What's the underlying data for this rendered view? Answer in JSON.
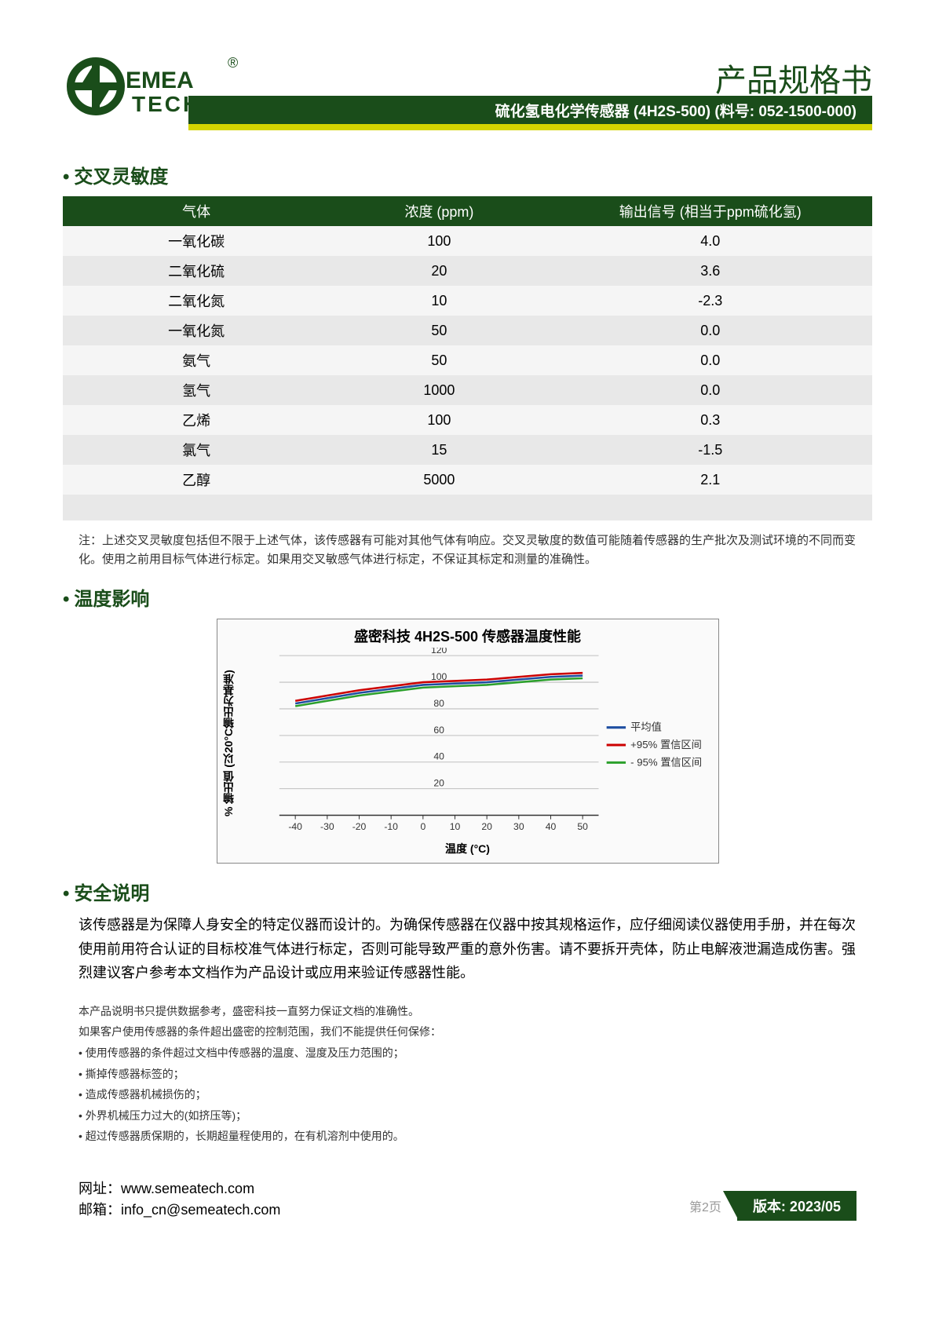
{
  "header": {
    "brand": "SEMEA TECH",
    "registered": "®",
    "title": "产品规格书",
    "subtitle": "硫化氢电化学传感器 (4H2S-500) (料号: 052-1500-000)"
  },
  "sections": {
    "cross_title": "交叉灵敏度",
    "temp_title": "温度影响",
    "safety_title": "安全说明"
  },
  "cross_table": {
    "columns": [
      "气体",
      "浓度 (ppm)",
      "输出信号 (相当于ppm硫化氢)"
    ],
    "rows": [
      [
        "一氧化碳",
        "100",
        "4.0"
      ],
      [
        "二氧化硫",
        "20",
        "3.6"
      ],
      [
        "二氧化氮",
        "10",
        "-2.3"
      ],
      [
        "一氧化氮",
        "50",
        "0.0"
      ],
      [
        "氨气",
        "50",
        "0.0"
      ],
      [
        "氢气",
        "1000",
        "0.0"
      ],
      [
        "乙烯",
        "100",
        "0.3"
      ],
      [
        "氯气",
        "15",
        "-1.5"
      ],
      [
        "乙醇",
        "5000",
        "2.1"
      ]
    ],
    "note": "注：上述交叉灵敏度包括但不限于上述气体，该传感器有可能对其他气体有响应。交叉灵敏度的数值可能随着传感器的生产批次及测试环境的不同而变化。使用之前用目标气体进行标定。如果用交叉敏感气体进行标定，不保证其标定和测量的准确性。"
  },
  "chart": {
    "type": "line",
    "title": "盛密科技 4H2S-500 传感器温度性能",
    "ylabel": "% 输出值 (以20°C输出为基准)",
    "xlabel": "温度 (°C)",
    "xlim": [
      -45,
      55
    ],
    "xtick_step": 10,
    "xtick_start": -40,
    "ylim": [
      0,
      120
    ],
    "ytick_step": 20,
    "grid_color": "#bfbfbf",
    "background_color": "#fafafa",
    "legend_pos": "right",
    "series": [
      {
        "name": "平均值",
        "color": "#1f4ea1",
        "x": [
          -40,
          -30,
          -20,
          -10,
          0,
          10,
          20,
          30,
          40,
          50
        ],
        "y": [
          84,
          88,
          92,
          95,
          98,
          99,
          100,
          102,
          104,
          105
        ]
      },
      {
        "name": "+95% 置信区间",
        "color": "#cc0000",
        "x": [
          -40,
          -30,
          -20,
          -10,
          0,
          10,
          20,
          30,
          40,
          50
        ],
        "y": [
          86,
          90,
          94,
          97,
          100,
          101,
          102,
          104,
          106,
          107
        ]
      },
      {
        "name": "- 95% 置信区间",
        "color": "#2ca02c",
        "x": [
          -40,
          -30,
          -20,
          -10,
          0,
          10,
          20,
          30,
          40,
          50
        ],
        "y": [
          82,
          86,
          90,
          93,
          96,
          97,
          98,
          100,
          102,
          103
        ]
      }
    ]
  },
  "safety": {
    "paragraph": "该传感器是为保障人身安全的特定仪器而设计的。为确保传感器在仪器中按其规格运作，应仔细阅读仪器使用手册，并在每次使用前用符合认证的目标校准气体进行标定，否则可能导致严重的意外伤害。请不要拆开壳体，防止电解液泄漏造成伤害。强烈建议客户参考本文档作为产品设计或应用来验证传感器性能。",
    "disclaimers": [
      "本产品说明书只提供数据参考，盛密科技一直努力保证文档的准确性。",
      "如果客户使用传感器的条件超出盛密的控制范围，我们不能提供任何保修：",
      "使用传感器的条件超过文档中传感器的温度、湿度及压力范围的；",
      "撕掉传感器标签的；",
      "造成传感器机械损伤的；",
      "外界机械压力过大的(如挤压等)；",
      "超过传感器质保期的，长期超量程使用的，在有机溶剂中使用的。"
    ],
    "disclaimer_bullet_from": 2
  },
  "footer": {
    "url_label": "网址：",
    "url": "www.semeatech.com",
    "mail_label": "邮箱：",
    "mail": "info_cn@semeatech.com",
    "page": "第2页",
    "version": "版本: 2023/05"
  },
  "colors": {
    "primary": "#1a4d1a",
    "accent": "#d4d400"
  }
}
